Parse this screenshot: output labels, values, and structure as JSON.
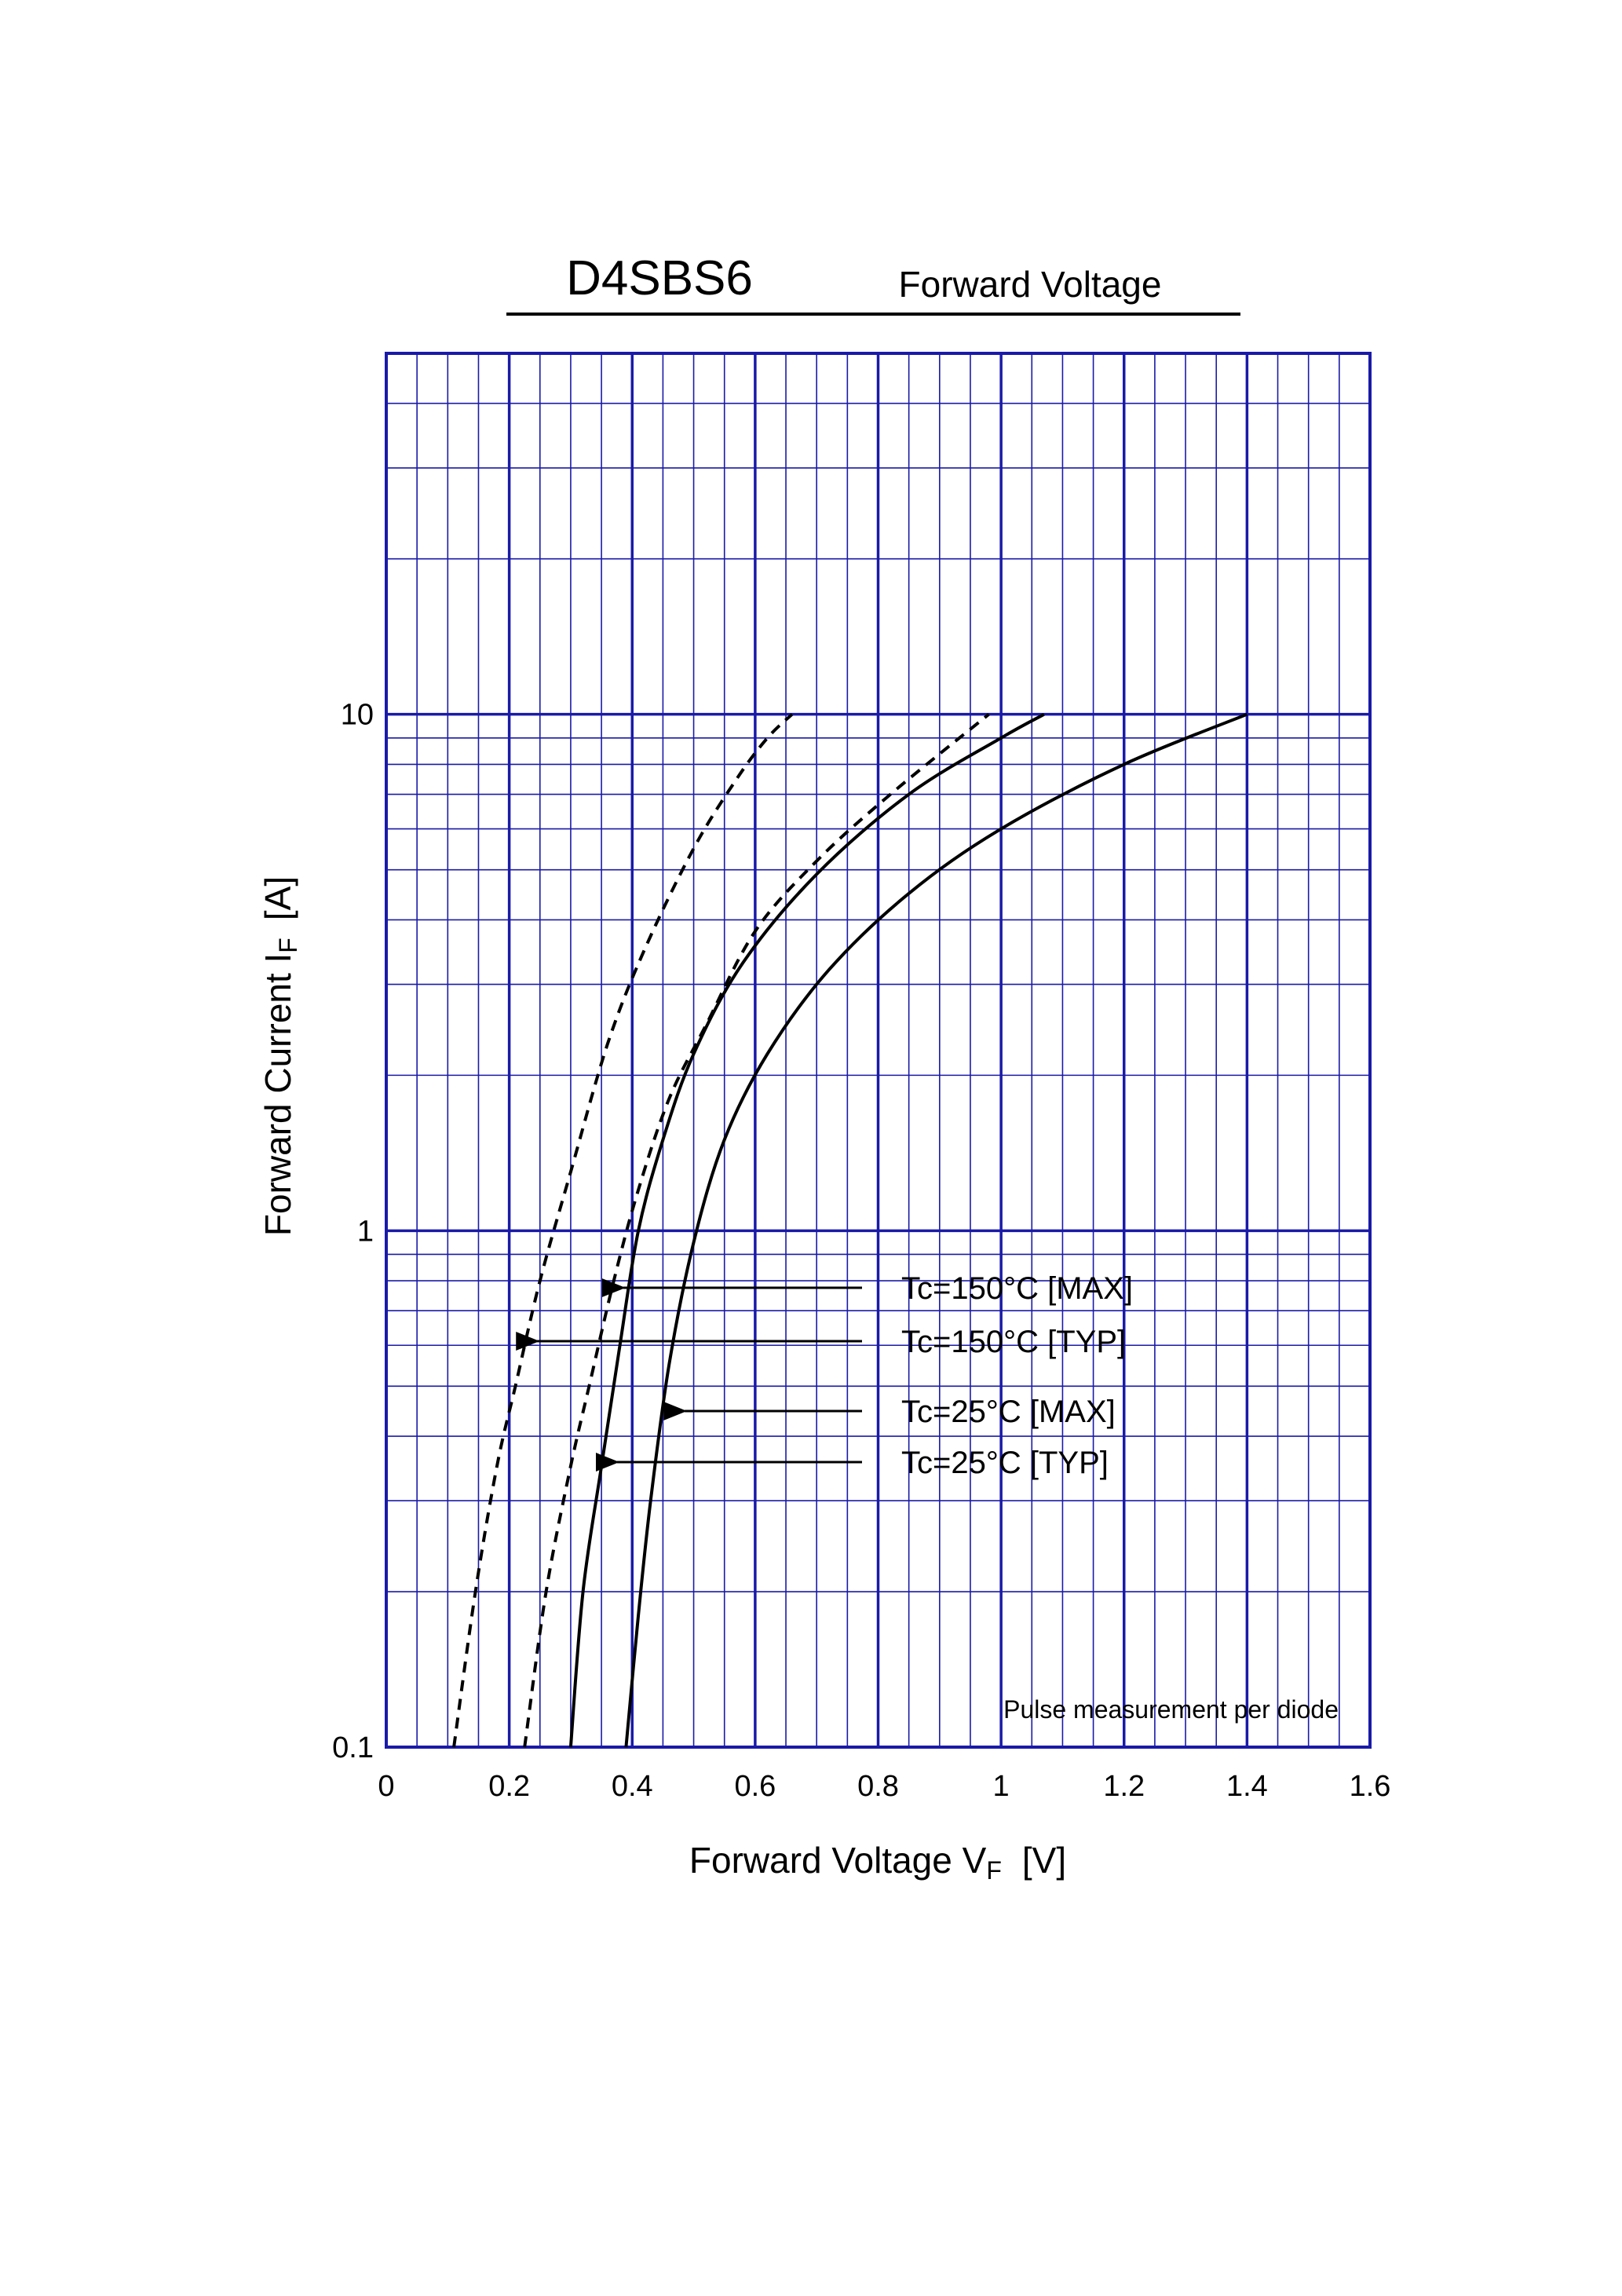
{
  "chart_data": {
    "type": "line",
    "title": "D4SBS6",
    "subtitle": "Forward Voltage",
    "xlabel": {
      "main": "Forward Voltage  V",
      "sub": "F",
      "unit": "[V]"
    },
    "ylabel": {
      "main": "Forward Current  I",
      "sub": "F",
      "unit": "[A]"
    },
    "xlim": [
      0,
      1.6
    ],
    "ylim": [
      0.1,
      50
    ],
    "y_scale": "log",
    "grid": true,
    "grid_color": "#1a1aa8",
    "x_ticks": [
      "0",
      "0.2",
      "0.4",
      "0.6",
      "0.8",
      "1",
      "1.2",
      "1.4",
      "1.6"
    ],
    "x_tick_values": [
      0,
      0.2,
      0.4,
      0.6,
      0.8,
      1,
      1.2,
      1.4,
      1.6
    ],
    "y_ticks": [
      "0.1",
      "1",
      "10"
    ],
    "y_tick_values": [
      0.1,
      1,
      10
    ],
    "series": [
      {
        "name": "Tc=150°C [TYP]",
        "style": "dashed",
        "x": [
          0.11,
          0.145,
          0.18,
          0.21,
          0.25,
          0.3,
          0.36,
          0.42,
          0.5,
          0.57,
          0.62,
          0.66
        ],
        "y": [
          0.1,
          0.2,
          0.35,
          0.5,
          0.8,
          1.3,
          2.3,
          3.5,
          5.5,
          7.5,
          9,
          10
        ]
      },
      {
        "name": "Tc=150°C [MAX]",
        "style": "dashed",
        "x": [
          0.225,
          0.26,
          0.3,
          0.33,
          0.37,
          0.41,
          0.46,
          0.52,
          0.6,
          0.7,
          0.82,
          0.98
        ],
        "y": [
          0.1,
          0.2,
          0.35,
          0.5,
          0.8,
          1.2,
          1.8,
          2.5,
          3.8,
          5.2,
          7,
          10
        ]
      },
      {
        "name": "Tc=25°C [TYP]",
        "style": "solid",
        "x": [
          0.3,
          0.32,
          0.35,
          0.38,
          0.41,
          0.45,
          0.5,
          0.58,
          0.7,
          0.85,
          1.0,
          1.07
        ],
        "y": [
          0.1,
          0.2,
          0.35,
          0.6,
          1.0,
          1.5,
          2.2,
          3.3,
          4.9,
          7.0,
          9.0,
          10
        ]
      },
      {
        "name": "Tc=25°C [MAX]",
        "style": "solid",
        "x": [
          0.39,
          0.41,
          0.43,
          0.46,
          0.5,
          0.55,
          0.62,
          0.72,
          0.85,
          1.0,
          1.2,
          1.4
        ],
        "y": [
          0.1,
          0.18,
          0.3,
          0.55,
          0.95,
          1.5,
          2.2,
          3.2,
          4.5,
          6.0,
          8.0,
          10
        ]
      }
    ],
    "legend": [
      {
        "label": "Tc=150°C [MAX]",
        "arrow_target": {
          "x": 0.365,
          "y": 0.75
        }
      },
      {
        "label": "Tc=150°C [TYP]",
        "arrow_target": {
          "x": 0.225,
          "y": 0.6
        }
      },
      {
        "label": "Tc=25°C [MAX]",
        "arrow_target": {
          "x": 0.465,
          "y": 0.44
        }
      },
      {
        "label": "Tc=25°C [TYP]",
        "arrow_target": {
          "x": 0.355,
          "y": 0.35
        }
      }
    ],
    "annotation": "Pulse measurement per diode"
  }
}
